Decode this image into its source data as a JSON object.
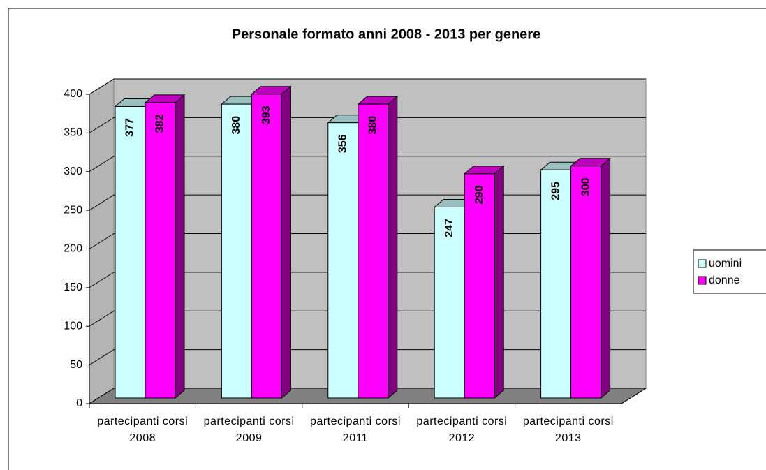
{
  "chart_data": {
    "type": "bar3d",
    "title": "Personale formato anni 2008 - 2013 per genere",
    "categories": [
      "partecipanti corsi 2008",
      "partecipanti corsi 2009",
      "partecipanti corsi 2011",
      "partecipanti corsi 2012",
      "partecipanti corsi 2013"
    ],
    "series": [
      {
        "name": "uomini",
        "color": "#ccffff",
        "values": [
          377,
          380,
          356,
          247,
          295
        ]
      },
      {
        "name": "donne",
        "color": "#ff00ff",
        "values": [
          382,
          393,
          380,
          290,
          300
        ]
      }
    ],
    "ylim": [
      0,
      400
    ],
    "yticks": [
      0,
      50,
      100,
      150,
      200,
      250,
      300,
      350,
      400
    ],
    "grid": true,
    "legend": "right"
  }
}
